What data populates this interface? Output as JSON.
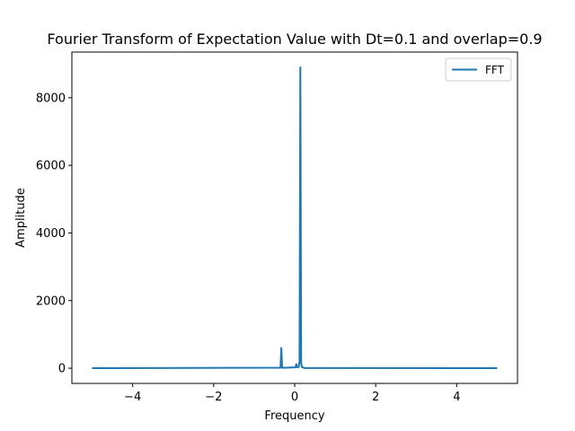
{
  "chart_data": {
    "type": "line",
    "title": "Fourier Transform of Expectation Value with Dt=0.1 and overlap=0.9",
    "xlabel": "Frequency",
    "ylabel": "Amplitude",
    "xlim": [
      -5.5,
      5.5
    ],
    "ylim": [
      -450,
      9350
    ],
    "xticks": [
      -4,
      -2,
      0,
      2,
      4
    ],
    "xtick_labels": [
      "−4",
      "−2",
      "0",
      "2",
      "4"
    ],
    "yticks": [
      0,
      2000,
      4000,
      6000,
      8000
    ],
    "ytick_labels": [
      "0",
      "2000",
      "4000",
      "6000",
      "8000"
    ],
    "grid": false,
    "legend": {
      "position": "upper-right"
    },
    "series": [
      {
        "name": "FFT",
        "color": "#1f77b4",
        "x": [
          -5.0,
          -0.35,
          -0.33,
          -0.31,
          -0.29,
          0.02,
          0.04,
          0.06,
          0.08,
          0.1,
          0.12,
          0.14,
          0.16,
          0.18,
          0.25,
          5.0
        ],
        "y": [
          0,
          15,
          600,
          15,
          10,
          25,
          120,
          30,
          25,
          40,
          200,
          8900,
          150,
          30,
          5,
          0
        ]
      }
    ]
  }
}
